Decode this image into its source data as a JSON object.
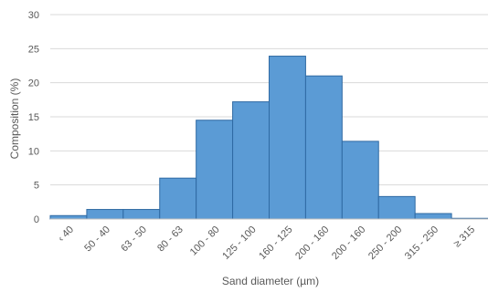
{
  "chart_data": {
    "type": "bar",
    "title": "",
    "xlabel": "Sand diameter (µm)",
    "ylabel": "Composition (%)",
    "ylim": [
      0,
      30
    ],
    "yticks": [
      0,
      5,
      10,
      15,
      20,
      25,
      30
    ],
    "grid": "horizontal",
    "legend": "none",
    "bar_color": "#5b9bd5",
    "bar_edge_color": "#2f6aa3",
    "categories": [
      "‹ 40",
      "50 - 40",
      "63 - 50",
      "80 - 63",
      "100 - 80",
      "125 - 100",
      "160 - 125",
      "200 - 160",
      "200 - 160",
      "250 - 200",
      "315 - 250",
      "≥ 315"
    ],
    "values": [
      0.5,
      1.4,
      1.4,
      6.0,
      14.5,
      17.2,
      23.9,
      21.0,
      11.4,
      3.3,
      0.8,
      0.1
    ]
  }
}
